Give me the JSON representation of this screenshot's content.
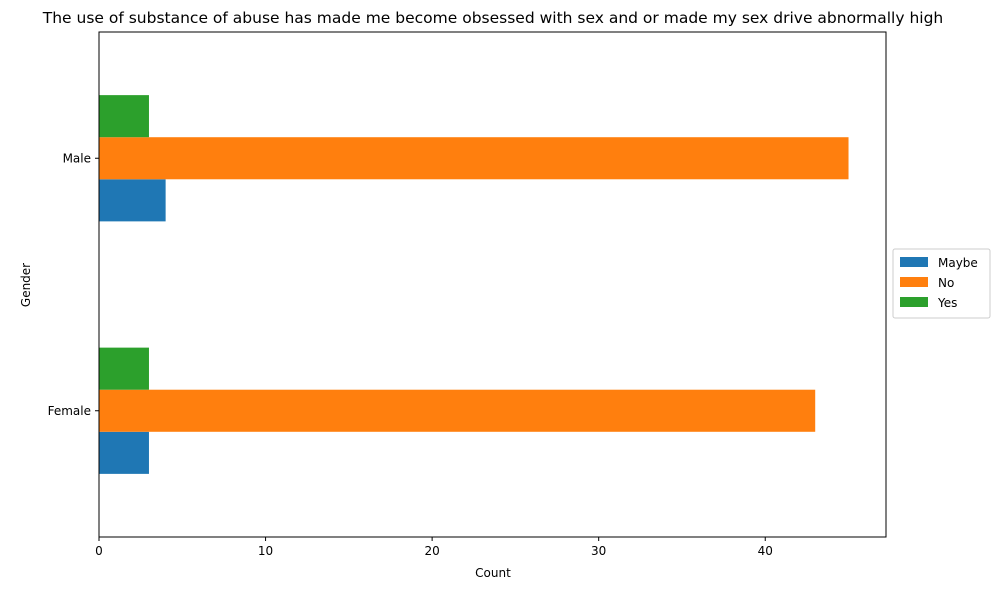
{
  "chart_data": {
    "type": "bar",
    "orientation": "horizontal",
    "title": "The use of substance of abuse has made me become obsessed with sex and or made my sex drive abnormally high",
    "xlabel": "Count",
    "ylabel": "Gender",
    "categories": [
      "Female",
      "Male"
    ],
    "series": [
      {
        "name": "Maybe",
        "values": [
          3,
          4
        ],
        "color": "#1f77b4"
      },
      {
        "name": "No",
        "values": [
          43,
          45
        ],
        "color": "#ff7f0e"
      },
      {
        "name": "Yes",
        "values": [
          3,
          3
        ],
        "color": "#2ca02c"
      }
    ],
    "xlim": [
      0,
      47.25
    ],
    "xticks": [
      0,
      10,
      20,
      30,
      40
    ],
    "grid": false,
    "legend": "center-right-outside"
  }
}
